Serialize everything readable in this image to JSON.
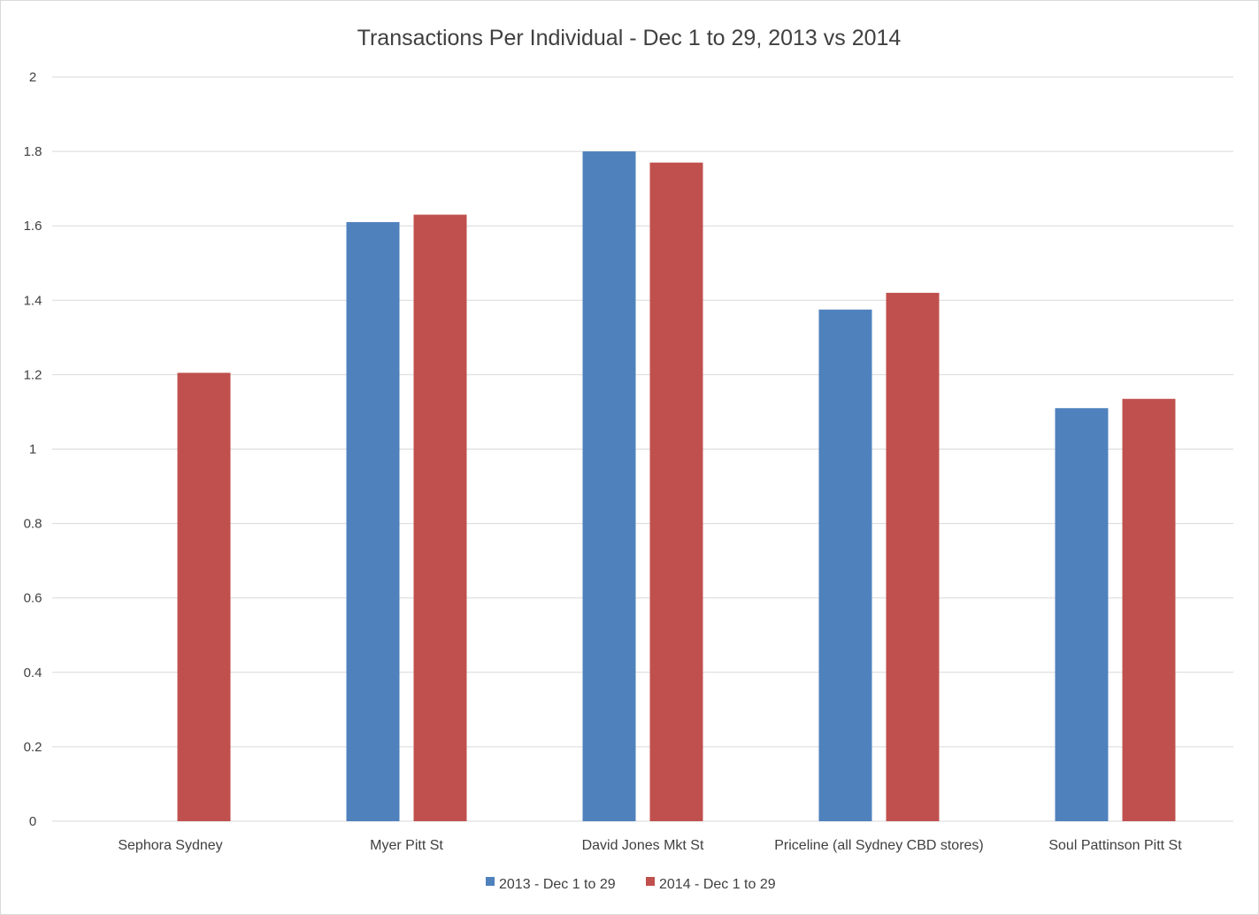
{
  "chart_data": {
    "type": "bar",
    "title": "Transactions Per Individual - Dec 1 to 29, 2013 vs 2014",
    "xlabel": "",
    "ylabel": "",
    "categories": [
      "Sephora Sydney",
      "Myer Pitt St",
      "David Jones Mkt St",
      "Priceline (all Sydney CBD stores)",
      "Soul Pattinson Pitt St"
    ],
    "series": [
      {
        "name": "2013 - Dec 1 to 29",
        "color": "#4f81bd",
        "values": [
          null,
          1.61,
          1.8,
          1.375,
          1.11
        ]
      },
      {
        "name": "2014 - Dec 1 to 29",
        "color": "#c0504d",
        "values": [
          1.205,
          1.63,
          1.77,
          1.42,
          1.135
        ]
      }
    ],
    "ylim": [
      0,
      2
    ],
    "yticks": [
      "0",
      "0.2",
      "0.4",
      "0.6",
      "0.8",
      "1",
      "1.2",
      "1.4",
      "1.6",
      "1.8",
      "2"
    ],
    "grid": true,
    "legend_position": "bottom"
  }
}
